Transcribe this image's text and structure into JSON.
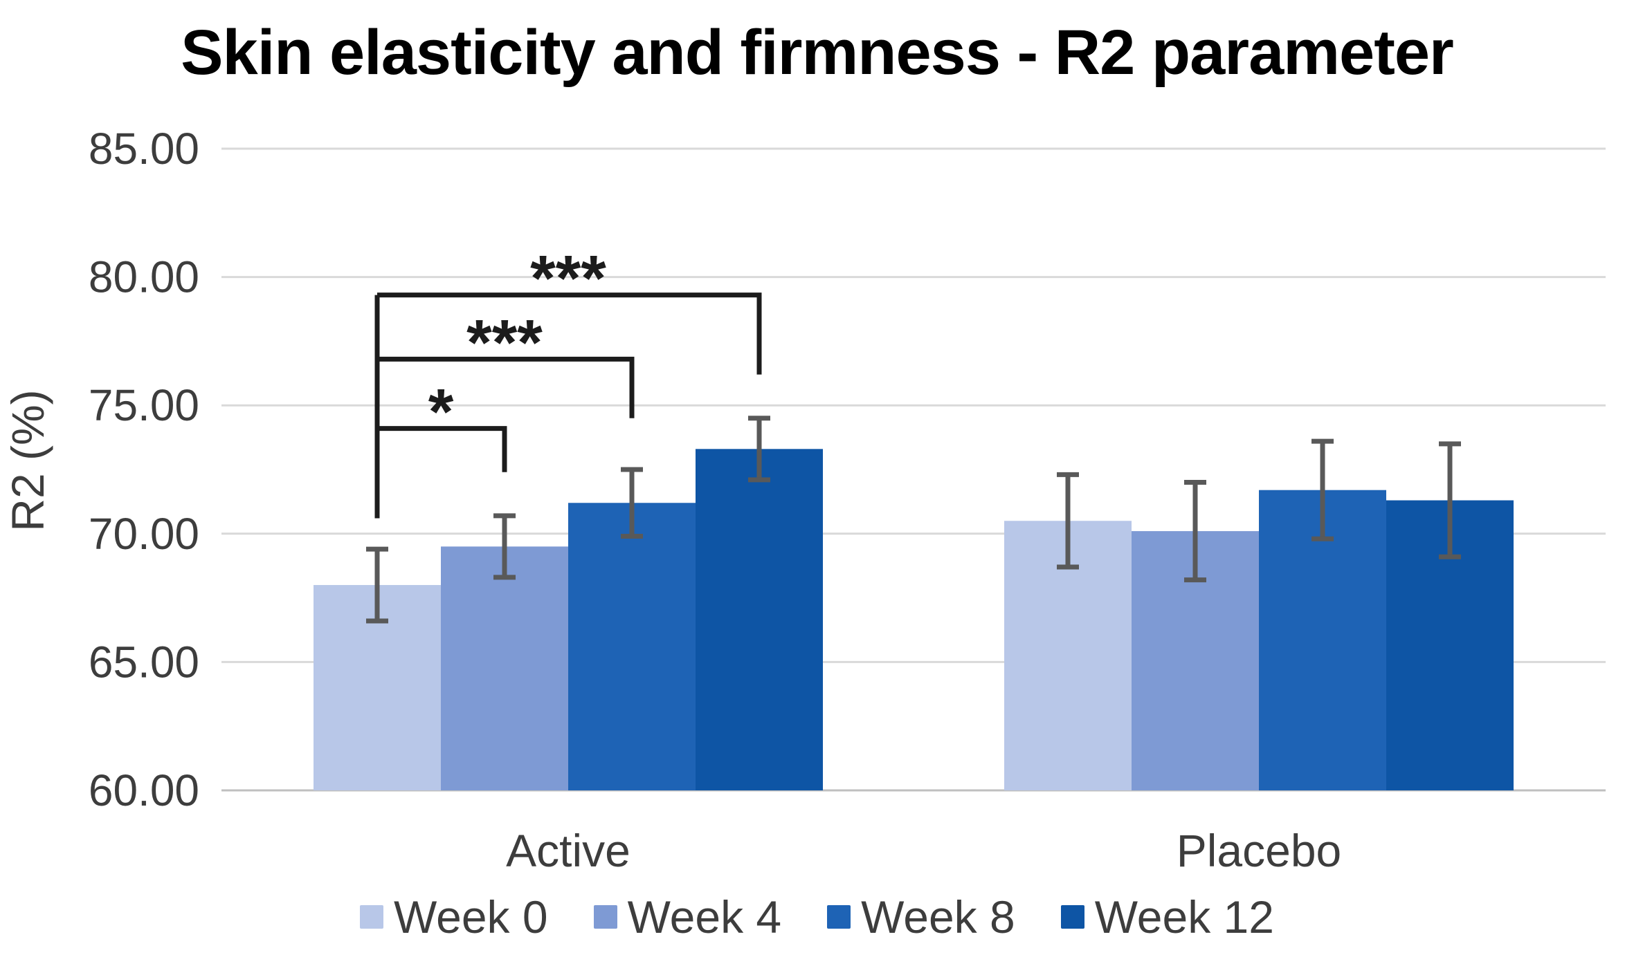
{
  "title": "Skin elasticity and firmness - R2 parameter",
  "chart_data": {
    "type": "bar",
    "title": "Skin elasticity and firmness - R2 parameter",
    "xlabel": "",
    "ylabel": "R2 (%)",
    "ylim": [
      60,
      85
    ],
    "grid": "horizontal",
    "legend_position": "bottom",
    "yticks": [
      {
        "value": 85,
        "label": "85.00"
      },
      {
        "value": 80,
        "label": "80.00"
      },
      {
        "value": 75,
        "label": "75.00"
      },
      {
        "value": 70,
        "label": "70.00"
      },
      {
        "value": 65,
        "label": "65.00"
      },
      {
        "value": 60,
        "label": "60.00"
      }
    ],
    "categories": [
      "Active",
      "Placebo"
    ],
    "series": [
      {
        "name": "Week 0",
        "color": "#b8c7e8",
        "values": [
          68.0,
          70.5
        ],
        "errors": [
          1.4,
          1.8
        ]
      },
      {
        "name": "Week 4",
        "color": "#7e9ad4",
        "values": [
          69.5,
          70.1
        ],
        "errors": [
          1.2,
          1.9
        ]
      },
      {
        "name": "Week 8",
        "color": "#1e63b5",
        "values": [
          71.2,
          71.7
        ],
        "errors": [
          1.3,
          1.9
        ]
      },
      {
        "name": "Week 12",
        "color": "#0e55a5",
        "values": [
          73.3,
          71.3
        ],
        "errors": [
          1.2,
          2.2
        ]
      }
    ],
    "error_bar_color": "#595959",
    "gridline_color": "#d9d9d9",
    "axis_line_color": "#bfbfbf",
    "significance": {
      "group_index": 0,
      "bracket_color": "#1c1c1c",
      "left_anchor_series": 0,
      "left_anchor_bottom": 70.6,
      "brackets": [
        {
          "label": "*",
          "from_series": 0,
          "to_series": 1,
          "height": 74.1,
          "right_drop_to": 72.4
        },
        {
          "label": "***",
          "from_series": 0,
          "to_series": 2,
          "height": 76.8,
          "right_drop_to": 74.5
        },
        {
          "label": "***",
          "from_series": 0,
          "to_series": 3,
          "height": 79.3,
          "right_drop_to": 76.2
        }
      ]
    }
  }
}
